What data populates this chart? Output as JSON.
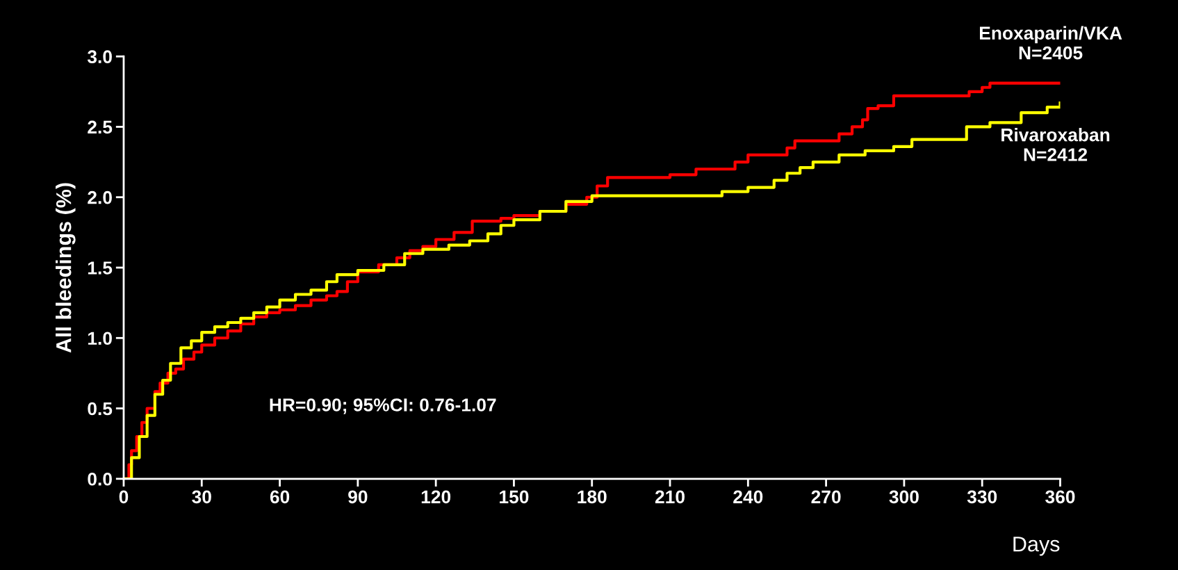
{
  "chart_data": {
    "type": "step",
    "xlabel": "Days",
    "ylabel": "All bleedings (%)",
    "xlim": [
      0,
      360
    ],
    "xticks": [
      0,
      30,
      60,
      90,
      120,
      150,
      180,
      210,
      240,
      270,
      300,
      330,
      360
    ],
    "ylim": [
      0,
      3
    ],
    "yticks": [
      {
        "value": 0,
        "label": "0.0"
      },
      {
        "value": 0.5,
        "label": "0.5"
      },
      {
        "value": 1,
        "label": "1.0"
      },
      {
        "value": 1.5,
        "label": "1.5"
      },
      {
        "value": 2,
        "label": "2.0"
      },
      {
        "value": 2.5,
        "label": "2.5"
      },
      {
        "value": 3,
        "label": "3.0"
      }
    ],
    "grid": false,
    "legend": false,
    "marker": "none",
    "line_style": "solid",
    "annotations": [
      "HR=0.90; 95%CI: 0.76-1.07"
    ],
    "series": [
      {
        "name": "Enoxaparin/VKA\nN=2405",
        "color": "#ff0000",
        "x": [
          0,
          2,
          3,
          5,
          7,
          9,
          12,
          14,
          17,
          20,
          23,
          27,
          30,
          35,
          40,
          45,
          50,
          55,
          60,
          66,
          72,
          78,
          82,
          86,
          90,
          98,
          105,
          110,
          115,
          120,
          127,
          134,
          145,
          150,
          160,
          170,
          178,
          182,
          186,
          210,
          220,
          235,
          240,
          255,
          258,
          275,
          280,
          284,
          286,
          290,
          296,
          325,
          330,
          333,
          360
        ],
        "values": [
          0,
          0.1,
          0.2,
          0.3,
          0.4,
          0.5,
          0.62,
          0.68,
          0.75,
          0.78,
          0.85,
          0.9,
          0.95,
          1.0,
          1.05,
          1.1,
          1.15,
          1.18,
          1.2,
          1.23,
          1.27,
          1.3,
          1.33,
          1.4,
          1.47,
          1.52,
          1.57,
          1.62,
          1.65,
          1.7,
          1.75,
          1.83,
          1.85,
          1.87,
          1.9,
          1.95,
          2.0,
          2.08,
          2.14,
          2.16,
          2.2,
          2.25,
          2.3,
          2.35,
          2.4,
          2.45,
          2.5,
          2.55,
          2.63,
          2.65,
          2.72,
          2.75,
          2.78,
          2.81,
          2.81
        ]
      },
      {
        "name": "Rivaroxaban\nN=2412",
        "color": "#ffff00",
        "x": [
          0,
          3,
          6,
          9,
          12,
          15,
          18,
          22,
          26,
          30,
          35,
          40,
          45,
          50,
          55,
          60,
          66,
          72,
          78,
          82,
          90,
          100,
          108,
          115,
          125,
          133,
          140,
          145,
          150,
          160,
          170,
          180,
          230,
          240,
          250,
          255,
          260,
          265,
          275,
          285,
          296,
          303,
          324,
          333,
          345,
          355,
          360
        ],
        "values": [
          0,
          0.15,
          0.3,
          0.45,
          0.6,
          0.7,
          0.82,
          0.93,
          0.98,
          1.04,
          1.08,
          1.11,
          1.14,
          1.18,
          1.22,
          1.27,
          1.31,
          1.34,
          1.4,
          1.45,
          1.48,
          1.52,
          1.6,
          1.63,
          1.66,
          1.69,
          1.74,
          1.8,
          1.84,
          1.9,
          1.97,
          2.01,
          2.04,
          2.07,
          2.12,
          2.17,
          2.21,
          2.25,
          2.3,
          2.33,
          2.36,
          2.41,
          2.5,
          2.53,
          2.6,
          2.64,
          2.67
        ]
      }
    ]
  }
}
